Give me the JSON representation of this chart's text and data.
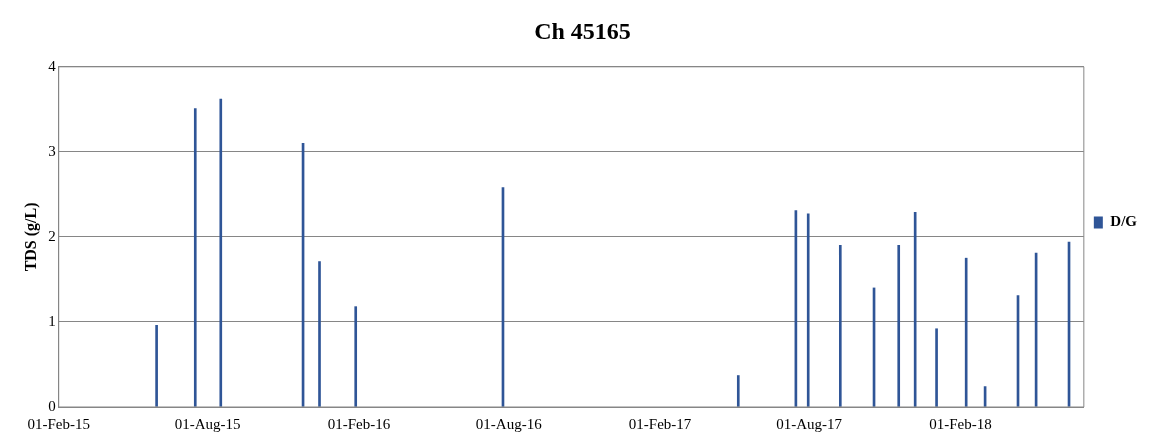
{
  "chart_data": {
    "type": "bar",
    "title": "Ch 45165",
    "ylabel": "TDS (g/L)",
    "x": [
      "2015-05-31",
      "2015-07-17",
      "2015-08-17",
      "2015-11-25",
      "2015-12-15",
      "2016-01-28",
      "2016-07-25",
      "2017-05-07",
      "2017-07-16",
      "2017-07-31",
      "2017-09-08",
      "2017-10-19",
      "2017-11-18",
      "2017-12-08",
      "2018-01-03",
      "2018-02-08",
      "2018-03-03",
      "2018-04-12",
      "2018-05-04",
      "2018-06-13"
    ],
    "series": [
      {
        "name": "D/G",
        "color": "#2f5597",
        "values": [
          0.96,
          3.51,
          3.62,
          3.1,
          1.71,
          1.18,
          2.58,
          0.37,
          2.31,
          2.27,
          1.9,
          1.4,
          1.9,
          2.29,
          0.92,
          1.75,
          0.24,
          1.31,
          1.81,
          1.94
        ]
      }
    ],
    "xlim": [
      "2015-02-01",
      "2018-07-01"
    ],
    "xticks": [
      {
        "value": "2015-02-01",
        "label": "01-Feb-15"
      },
      {
        "value": "2015-08-01",
        "label": "01-Aug-15"
      },
      {
        "value": "2016-02-01",
        "label": "01-Feb-16"
      },
      {
        "value": "2016-08-01",
        "label": "01-Aug-16"
      },
      {
        "value": "2017-02-01",
        "label": "01-Feb-17"
      },
      {
        "value": "2017-08-01",
        "label": "01-Aug-17"
      },
      {
        "value": "2018-02-01",
        "label": "01-Feb-18"
      }
    ],
    "ylim": [
      0,
      4
    ],
    "yticks": [
      0,
      1,
      2,
      3,
      4
    ],
    "grid": "y",
    "legend": "right"
  }
}
